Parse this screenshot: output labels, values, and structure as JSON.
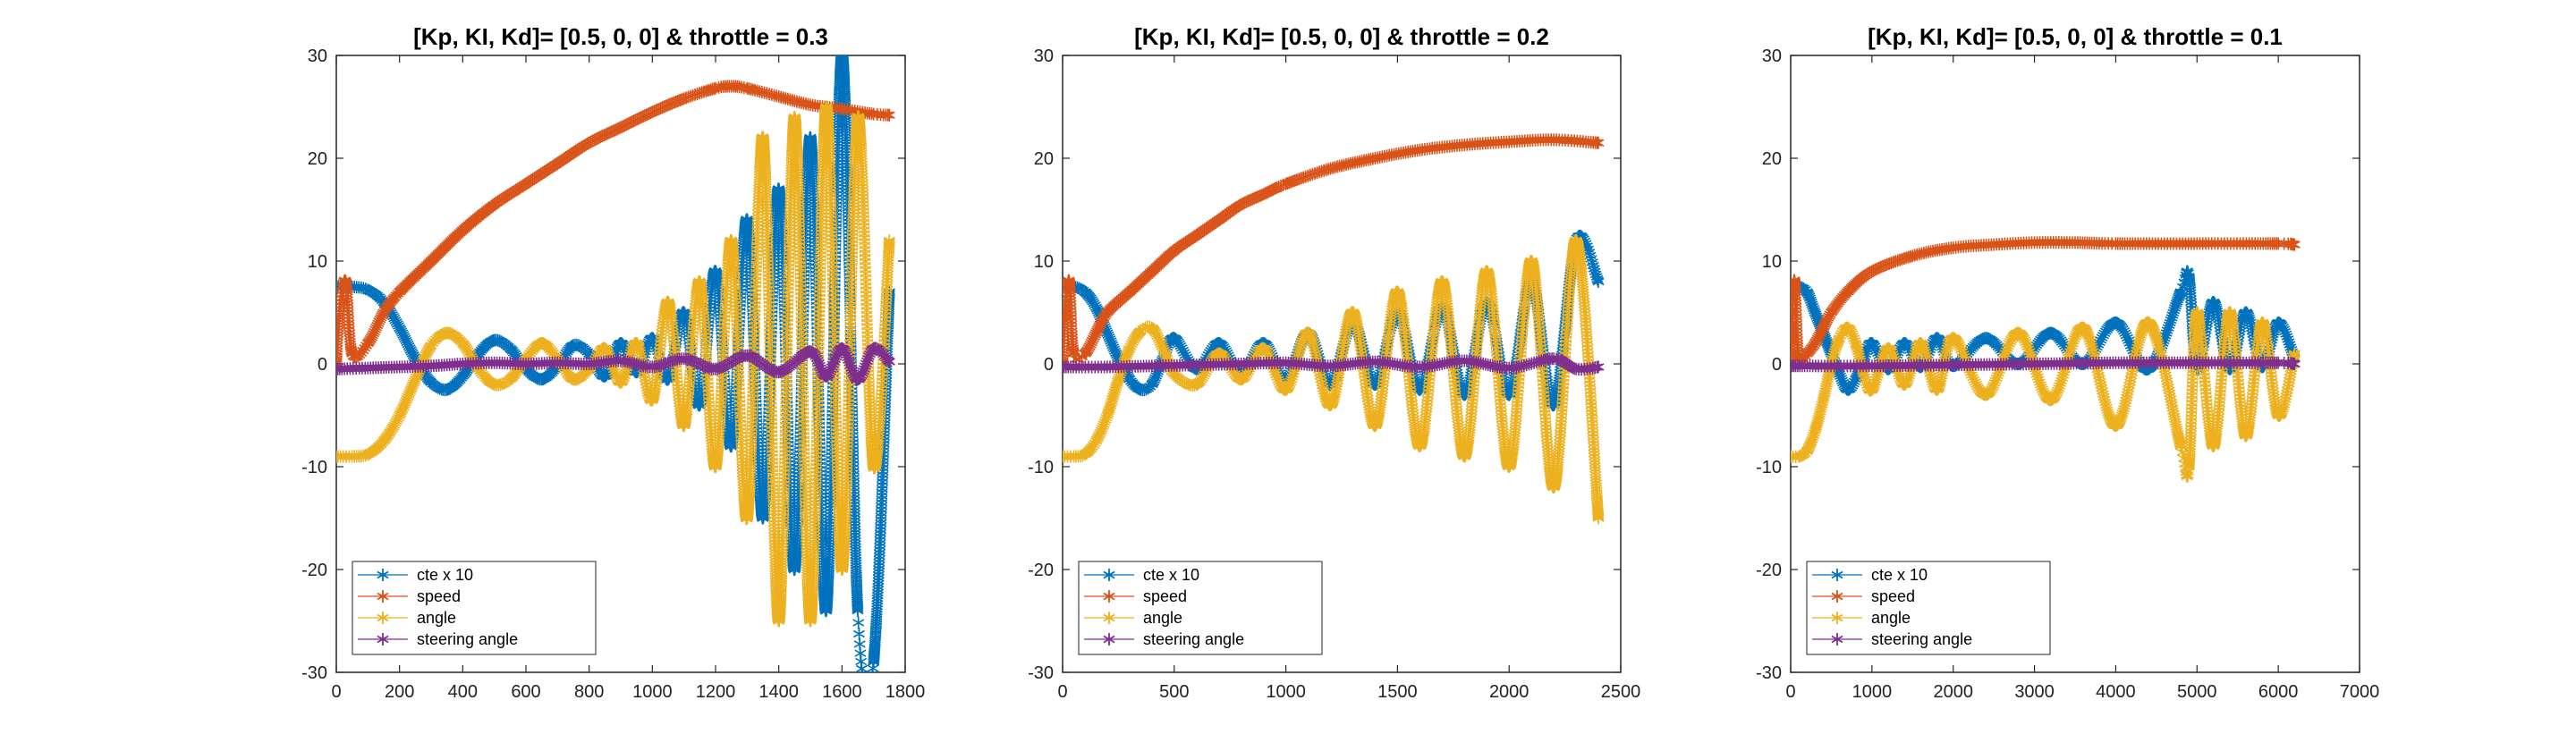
{
  "chart_data": [
    {
      "type": "line",
      "title": "[Kp, KI, Kd]= [0.5, 0, 0] & throttle = 0.3",
      "xlim": [
        0,
        1800
      ],
      "ylim": [
        -30,
        30
      ],
      "xticks": [
        0,
        200,
        400,
        600,
        800,
        1000,
        1200,
        1400,
        1600,
        1800
      ],
      "yticks": [
        -30,
        -20,
        -10,
        0,
        10,
        20,
        30
      ],
      "xtick_labels": [
        "0",
        "200",
        "400",
        "600",
        "800",
        "1000",
        "1200",
        "1400",
        "1600",
        "1800"
      ],
      "ytick_labels": [
        "-30",
        "-20",
        "-10",
        "0",
        "10",
        "20",
        "30"
      ],
      "legend_position": "bottom-left",
      "series": [
        {
          "name": "cte x 10",
          "color": "#0072BD",
          "marker": "*",
          "x": [
            0,
            50,
            100,
            150,
            200,
            250,
            300,
            350,
            400,
            450,
            500,
            550,
            600,
            650,
            700,
            750,
            800,
            850,
            900,
            950,
            1000,
            1050,
            1100,
            1150,
            1200,
            1250,
            1300,
            1350,
            1400,
            1450,
            1500,
            1550,
            1600,
            1650,
            1700,
            1750
          ],
          "y": [
            7.5,
            7.5,
            7.2,
            6.0,
            3.5,
            0.5,
            -1.8,
            -2.5,
            -1.2,
            1.0,
            2.3,
            1.5,
            -0.5,
            -1.5,
            -0.2,
            1.8,
            1.0,
            -1.2,
            2.0,
            -0.8,
            2.5,
            -1.5,
            5.0,
            -4.0,
            9.0,
            -8.0,
            14.0,
            -15.0,
            17.0,
            -20.0,
            22.0,
            -24.0,
            30.0,
            -24.0,
            -29.0,
            7.0
          ]
        },
        {
          "name": "speed",
          "color": "#D95319",
          "marker": "*",
          "x": [
            0,
            10,
            30,
            50,
            100,
            150,
            200,
            300,
            400,
            500,
            600,
            700,
            800,
            900,
            1000,
            1100,
            1200,
            1250,
            1300,
            1400,
            1500,
            1600,
            1700,
            1750
          ],
          "y": [
            0,
            5,
            8,
            1,
            2,
            5,
            7,
            10,
            13,
            15.5,
            17.5,
            19.5,
            21.5,
            23,
            24.5,
            25.8,
            26.8,
            27,
            26.8,
            26,
            25.2,
            24.8,
            24.3,
            24.2
          ]
        },
        {
          "name": "angle",
          "color": "#EDB120",
          "marker": "*",
          "x": [
            0,
            50,
            100,
            150,
            200,
            250,
            300,
            350,
            400,
            450,
            500,
            550,
            600,
            650,
            700,
            750,
            800,
            850,
            900,
            950,
            1000,
            1050,
            1100,
            1150,
            1200,
            1250,
            1300,
            1350,
            1400,
            1450,
            1500,
            1550,
            1600,
            1650,
            1700,
            1750
          ],
          "y": [
            -9,
            -9,
            -8.8,
            -7.5,
            -5,
            -1.5,
            1.8,
            3.0,
            2.0,
            -0.5,
            -2.0,
            -1.5,
            0.5,
            2.0,
            0.5,
            -1.5,
            -0.5,
            1.5,
            -1.8,
            2.0,
            -3.5,
            6.0,
            -6.0,
            8.0,
            -10.0,
            12.0,
            -15.0,
            22.0,
            -25.0,
            24.0,
            -25.0,
            25.0,
            -20.0,
            24.0,
            -10.0,
            12.0
          ]
        },
        {
          "name": "steering angle",
          "color": "#7E2F8E",
          "marker": "*",
          "x": [
            0,
            100,
            200,
            300,
            400,
            500,
            600,
            700,
            800,
            900,
            1000,
            1100,
            1200,
            1300,
            1400,
            1500,
            1550,
            1600,
            1650,
            1700,
            1750
          ],
          "y": [
            -0.5,
            -0.4,
            -0.3,
            -0.2,
            0,
            0.1,
            0,
            0.1,
            0,
            0.3,
            -0.3,
            0.5,
            -0.5,
            0.8,
            -0.8,
            1.2,
            -1.2,
            1.5,
            -1.5,
            1.5,
            0.2
          ]
        }
      ]
    },
    {
      "type": "line",
      "title": "[Kp, KI, Kd]= [0.5, 0, 0] & throttle = 0.2",
      "xlim": [
        0,
        2500
      ],
      "ylim": [
        -30,
        30
      ],
      "xticks": [
        0,
        500,
        1000,
        1500,
        2000,
        2500
      ],
      "yticks": [
        -30,
        -20,
        -10,
        0,
        10,
        20,
        30
      ],
      "xtick_labels": [
        "0",
        "500",
        "1000",
        "1500",
        "2000",
        "2500"
      ],
      "ytick_labels": [
        "-30",
        "-20",
        "-10",
        "0",
        "10",
        "20",
        "30"
      ],
      "legend_position": "bottom-left",
      "series": [
        {
          "name": "cte x 10",
          "color": "#0072BD",
          "marker": "*",
          "x": [
            0,
            50,
            100,
            150,
            200,
            250,
            300,
            350,
            400,
            450,
            500,
            600,
            700,
            800,
            900,
            1000,
            1100,
            1200,
            1300,
            1400,
            1500,
            1600,
            1700,
            1800,
            1900,
            2000,
            2100,
            2200,
            2300,
            2400
          ],
          "y": [
            7.5,
            7.5,
            7.0,
            5.5,
            3.0,
            0.5,
            -1.5,
            -2.5,
            -2.0,
            0.5,
            2.5,
            -0.5,
            2.0,
            -1.0,
            2.0,
            -1.5,
            3.0,
            -2.0,
            4.0,
            -2.0,
            5.0,
            -2.5,
            5.5,
            -3.0,
            6.0,
            -3.0,
            8.0,
            -4.0,
            12.0,
            8.0
          ]
        },
        {
          "name": "speed",
          "color": "#D95319",
          "marker": "*",
          "x": [
            0,
            10,
            30,
            50,
            100,
            150,
            200,
            300,
            400,
            500,
            600,
            700,
            800,
            900,
            1000,
            1200,
            1400,
            1600,
            1800,
            2000,
            2200,
            2400
          ],
          "y": [
            0,
            5,
            8,
            1,
            1,
            3,
            5,
            7,
            9,
            11,
            12.5,
            14,
            15.5,
            16.5,
            17.5,
            19,
            20,
            20.8,
            21.3,
            21.6,
            21.8,
            21.5
          ]
        },
        {
          "name": "angle",
          "color": "#EDB120",
          "marker": "*",
          "x": [
            0,
            50,
            100,
            150,
            200,
            250,
            300,
            350,
            400,
            450,
            500,
            600,
            700,
            800,
            900,
            1000,
            1100,
            1200,
            1300,
            1400,
            1500,
            1600,
            1700,
            1800,
            1900,
            2000,
            2100,
            2200,
            2300,
            2400
          ],
          "y": [
            -9,
            -9,
            -8.8,
            -7.5,
            -5,
            -1.5,
            1.5,
            3.2,
            3.5,
            1.5,
            -1.0,
            -2.0,
            1.0,
            -1.5,
            1.5,
            -2.5,
            3.0,
            -4.0,
            5.0,
            -6.0,
            7.0,
            -8.0,
            8.0,
            -9.0,
            9.0,
            -10.0,
            10.0,
            -12.0,
            12.0,
            -15.0
          ]
        },
        {
          "name": "steering angle",
          "color": "#7E2F8E",
          "marker": "*",
          "x": [
            0,
            200,
            400,
            600,
            800,
            1000,
            1200,
            1400,
            1600,
            1800,
            2000,
            2200,
            2300,
            2400
          ],
          "y": [
            -0.3,
            -0.3,
            -0.2,
            -0.1,
            0,
            0.1,
            -0.2,
            0.2,
            -0.3,
            0.3,
            -0.4,
            0.5,
            -0.5,
            -0.3
          ]
        }
      ]
    },
    {
      "type": "line",
      "title": "[Kp, KI, Kd]= [0.5, 0, 0] & throttle = 0.1",
      "xlim": [
        0,
        7000
      ],
      "ylim": [
        -30,
        30
      ],
      "xticks": [
        0,
        1000,
        2000,
        3000,
        4000,
        5000,
        6000,
        7000
      ],
      "yticks": [
        -30,
        -20,
        -10,
        0,
        10,
        20,
        30
      ],
      "xtick_labels": [
        "0",
        "1000",
        "2000",
        "3000",
        "4000",
        "5000",
        "6000",
        "7000"
      ],
      "ytick_labels": [
        "-30",
        "-20",
        "-10",
        "0",
        "10",
        "20",
        "30"
      ],
      "legend_position": "bottom-left",
      "series": [
        {
          "name": "cte x 10",
          "color": "#0072BD",
          "marker": "*",
          "x": [
            0,
            100,
            200,
            300,
            400,
            500,
            600,
            700,
            800,
            900,
            1000,
            1200,
            1400,
            1600,
            1800,
            2000,
            2400,
            2800,
            3200,
            3600,
            4000,
            4400,
            4800,
            4900,
            5000,
            5200,
            5400,
            5600,
            5800,
            6000,
            6200
          ],
          "y": [
            7.5,
            7.5,
            7.0,
            5.0,
            3.0,
            1.0,
            -1.0,
            -2.5,
            -1.5,
            0.5,
            2.0,
            -0.5,
            2.0,
            -0.3,
            2.5,
            -0.2,
            2.5,
            0,
            3.0,
            0,
            4.0,
            -0.5,
            7.0,
            8.5,
            -0.5,
            6.0,
            -0.5,
            5.0,
            -0.3,
            4.0,
            0.5
          ]
        },
        {
          "name": "speed",
          "color": "#D95319",
          "marker": "*",
          "x": [
            0,
            20,
            50,
            100,
            200,
            300,
            400,
            500,
            700,
            1000,
            1500,
            2000,
            2500,
            3000,
            3500,
            4000,
            5000,
            6000,
            6200
          ],
          "y": [
            0,
            5,
            8,
            0.5,
            1,
            2,
            3.5,
            5,
            7,
            9,
            10.5,
            11.3,
            11.6,
            11.8,
            11.8,
            11.7,
            11.7,
            11.7,
            11.6
          ]
        },
        {
          "name": "angle",
          "color": "#EDB120",
          "marker": "*",
          "x": [
            0,
            100,
            200,
            300,
            400,
            500,
            600,
            700,
            800,
            900,
            1000,
            1200,
            1400,
            1600,
            1800,
            2000,
            2400,
            2800,
            3200,
            3600,
            4000,
            4400,
            4800,
            4900,
            5000,
            5200,
            5400,
            5600,
            5800,
            6000,
            6200
          ],
          "y": [
            -9,
            -9,
            -8.5,
            -6.5,
            -3.5,
            0,
            2.5,
            3.5,
            2.0,
            -1.0,
            -2.5,
            1.5,
            -2.0,
            2.0,
            -2.5,
            2.5,
            -3.0,
            3.0,
            -3.5,
            3.5,
            -6.0,
            4.0,
            -8.0,
            -10.0,
            5.0,
            -8.0,
            5.0,
            -7.0,
            4.0,
            -5.0,
            1.0
          ]
        },
        {
          "name": "steering angle",
          "color": "#7E2F8E",
          "marker": "*",
          "x": [
            0,
            1000,
            2000,
            3000,
            4000,
            5000,
            6000,
            6200
          ],
          "y": [
            -0.2,
            -0.2,
            -0.1,
            0,
            0.1,
            0.1,
            0.1,
            0
          ]
        }
      ]
    }
  ]
}
